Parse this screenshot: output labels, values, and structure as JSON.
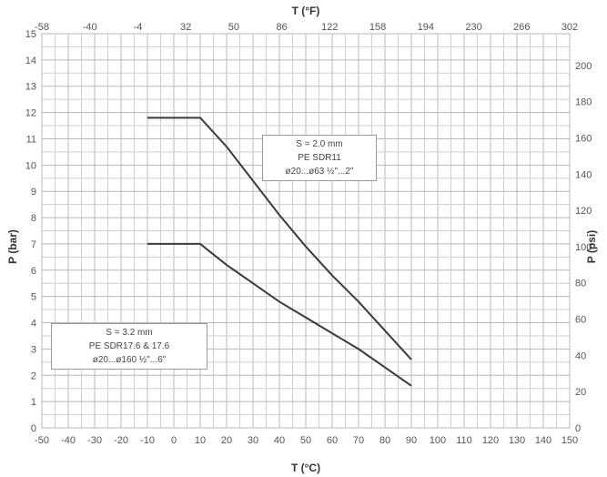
{
  "chart_data": {
    "type": "line",
    "title": "T (°F)",
    "xlabel": "T (°C)",
    "ylabel": "P (bar)",
    "y2label": "P (psi)",
    "xlim": [
      -50,
      150
    ],
    "ylim": [
      0,
      15
    ],
    "y2lim": [
      0,
      217.5
    ],
    "x_ticks": [
      "-50",
      "-40",
      "-30",
      "-20",
      "-10",
      "0",
      "10",
      "20",
      "30",
      "40",
      "50",
      "60",
      "70",
      "80",
      "90",
      "100",
      "110",
      "120",
      "130",
      "140",
      "150"
    ],
    "top_ticks": [
      "-58",
      "-40",
      "-4",
      "32",
      "50",
      "86",
      "122",
      "158",
      "194",
      "230",
      "266",
      "302"
    ],
    "y_ticks": [
      "0",
      "1",
      "2",
      "3",
      "4",
      "5",
      "6",
      "7",
      "8",
      "9",
      "10",
      "11",
      "12",
      "13",
      "14",
      "15"
    ],
    "y2_ticks": [
      "0",
      "20",
      "40",
      "60",
      "80",
      "100",
      "120",
      "140",
      "160",
      "180",
      "200"
    ],
    "grid": true,
    "series": [
      {
        "x": [
          -10,
          10,
          20,
          30,
          40,
          50,
          60,
          70,
          80,
          90
        ],
        "y": [
          11.8,
          11.8,
          10.7,
          9.4,
          8.1,
          6.9,
          5.8,
          4.8,
          3.7,
          2.6
        ]
      },
      {
        "x": [
          -10,
          10,
          20,
          30,
          40,
          50,
          60,
          70,
          80,
          90
        ],
        "y": [
          7.0,
          7.0,
          6.2,
          5.5,
          4.8,
          4.2,
          3.6,
          3.0,
          2.3,
          1.6
        ]
      }
    ],
    "annotations": [
      {
        "lines": [
          "S = 2.0 mm",
          "PE SDR11",
          "ø20...ø63 ½\"...2\""
        ]
      },
      {
        "lines": [
          "S = 3.2 mm",
          "PE SDR17.6 & 17.6",
          "ø20...ø160 ½\"...6\""
        ]
      }
    ]
  }
}
